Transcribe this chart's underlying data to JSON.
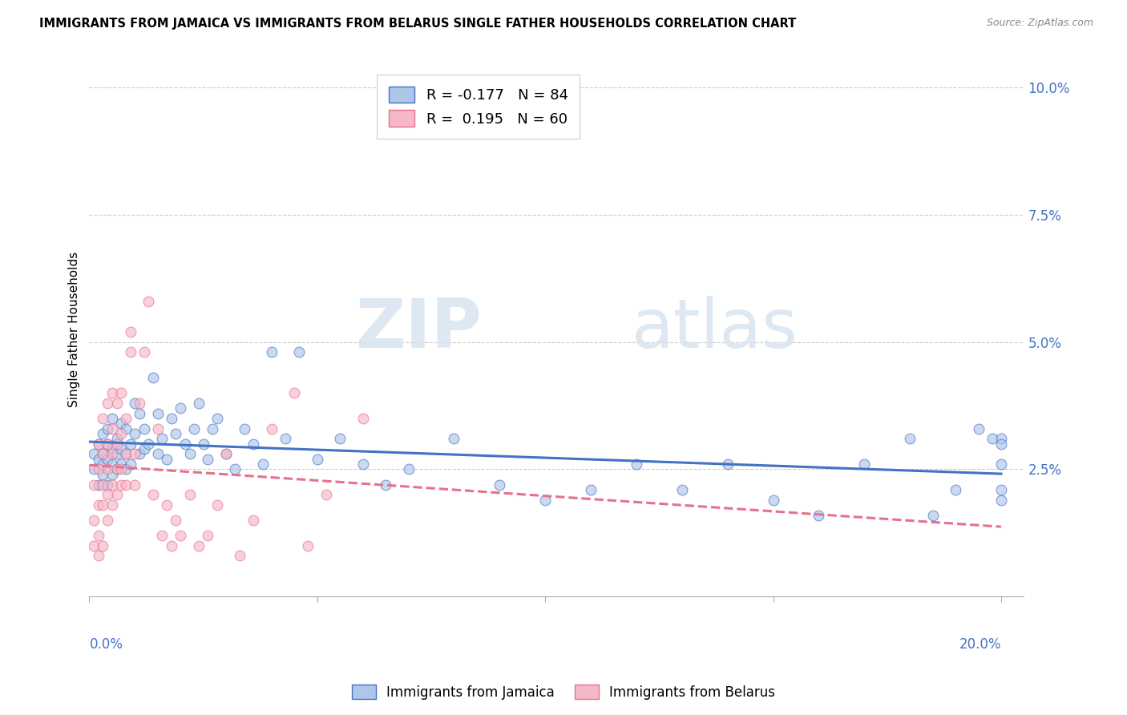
{
  "title": "IMMIGRANTS FROM JAMAICA VS IMMIGRANTS FROM BELARUS SINGLE FATHER HOUSEHOLDS CORRELATION CHART",
  "source": "Source: ZipAtlas.com",
  "ylabel": "Single Father Households",
  "xlim": [
    0.0,
    0.205
  ],
  "ylim": [
    0.0,
    0.105
  ],
  "yticks": [
    0.025,
    0.05,
    0.075,
    0.1
  ],
  "ytick_labels": [
    "2.5%",
    "5.0%",
    "7.5%",
    "10.0%"
  ],
  "xtick_left_label": "0.0%",
  "xtick_right_label": "20.0%",
  "color_jamaica": "#aec6e8",
  "color_belarus": "#f5b8c8",
  "color_jamaica_line": "#4472c4",
  "color_belarus_line": "#e8708a",
  "watermark_zip": "ZIP",
  "watermark_atlas": "atlas",
  "jamaica_x": [
    0.001,
    0.001,
    0.002,
    0.002,
    0.002,
    0.003,
    0.003,
    0.003,
    0.003,
    0.004,
    0.004,
    0.004,
    0.004,
    0.005,
    0.005,
    0.005,
    0.005,
    0.006,
    0.006,
    0.006,
    0.007,
    0.007,
    0.007,
    0.008,
    0.008,
    0.008,
    0.009,
    0.009,
    0.01,
    0.01,
    0.011,
    0.011,
    0.012,
    0.012,
    0.013,
    0.014,
    0.015,
    0.015,
    0.016,
    0.017,
    0.018,
    0.019,
    0.02,
    0.021,
    0.022,
    0.023,
    0.024,
    0.025,
    0.026,
    0.027,
    0.028,
    0.03,
    0.032,
    0.034,
    0.036,
    0.038,
    0.04,
    0.043,
    0.046,
    0.05,
    0.055,
    0.06,
    0.065,
    0.07,
    0.08,
    0.09,
    0.1,
    0.11,
    0.12,
    0.13,
    0.14,
    0.15,
    0.16,
    0.17,
    0.18,
    0.185,
    0.19,
    0.195,
    0.198,
    0.2,
    0.2,
    0.2,
    0.2,
    0.2
  ],
  "jamaica_y": [
    0.028,
    0.025,
    0.03,
    0.027,
    0.022,
    0.032,
    0.026,
    0.028,
    0.024,
    0.033,
    0.027,
    0.022,
    0.03,
    0.035,
    0.029,
    0.024,
    0.026,
    0.031,
    0.028,
    0.025,
    0.034,
    0.029,
    0.026,
    0.033,
    0.028,
    0.025,
    0.03,
    0.026,
    0.038,
    0.032,
    0.036,
    0.028,
    0.033,
    0.029,
    0.03,
    0.043,
    0.028,
    0.036,
    0.031,
    0.027,
    0.035,
    0.032,
    0.037,
    0.03,
    0.028,
    0.033,
    0.038,
    0.03,
    0.027,
    0.033,
    0.035,
    0.028,
    0.025,
    0.033,
    0.03,
    0.026,
    0.048,
    0.031,
    0.048,
    0.027,
    0.031,
    0.026,
    0.022,
    0.025,
    0.031,
    0.022,
    0.019,
    0.021,
    0.026,
    0.021,
    0.026,
    0.019,
    0.016,
    0.026,
    0.031,
    0.016,
    0.021,
    0.033,
    0.031,
    0.031,
    0.026,
    0.019,
    0.03,
    0.021
  ],
  "belarus_x": [
    0.001,
    0.001,
    0.001,
    0.002,
    0.002,
    0.002,
    0.002,
    0.002,
    0.003,
    0.003,
    0.003,
    0.003,
    0.003,
    0.004,
    0.004,
    0.004,
    0.004,
    0.004,
    0.005,
    0.005,
    0.005,
    0.005,
    0.005,
    0.006,
    0.006,
    0.006,
    0.006,
    0.007,
    0.007,
    0.007,
    0.007,
    0.008,
    0.008,
    0.008,
    0.009,
    0.009,
    0.01,
    0.01,
    0.011,
    0.012,
    0.013,
    0.014,
    0.015,
    0.016,
    0.017,
    0.018,
    0.019,
    0.02,
    0.022,
    0.024,
    0.026,
    0.028,
    0.03,
    0.033,
    0.036,
    0.04,
    0.045,
    0.048,
    0.052,
    0.06
  ],
  "belarus_y": [
    0.01,
    0.015,
    0.022,
    0.012,
    0.018,
    0.008,
    0.025,
    0.03,
    0.018,
    0.022,
    0.01,
    0.028,
    0.035,
    0.02,
    0.015,
    0.025,
    0.03,
    0.038,
    0.022,
    0.028,
    0.018,
    0.033,
    0.04,
    0.025,
    0.02,
    0.03,
    0.038,
    0.025,
    0.022,
    0.032,
    0.04,
    0.028,
    0.022,
    0.035,
    0.048,
    0.052,
    0.028,
    0.022,
    0.038,
    0.048,
    0.058,
    0.02,
    0.033,
    0.012,
    0.018,
    0.01,
    0.015,
    0.012,
    0.02,
    0.01,
    0.012,
    0.018,
    0.028,
    0.008,
    0.015,
    0.033,
    0.04,
    0.01,
    0.02,
    0.035
  ]
}
